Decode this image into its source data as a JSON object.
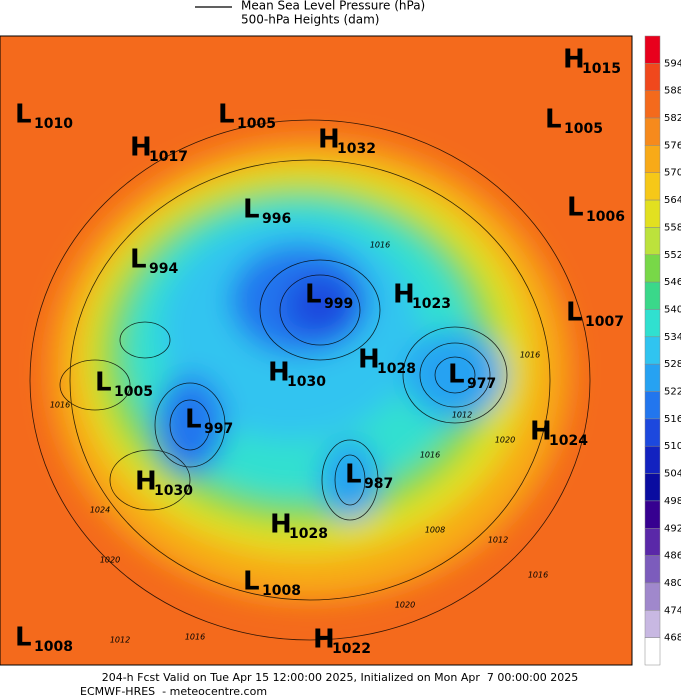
{
  "header": {
    "legend": [
      "Mean Sea Level Pressure (hPa)",
      "500-hPa Heights (dam)"
    ]
  },
  "colorbar": {
    "ticks": [
      594,
      588,
      582,
      576,
      570,
      564,
      558,
      552,
      546,
      540,
      534,
      528,
      522,
      516,
      510,
      504,
      498,
      492,
      486,
      480,
      474,
      468
    ],
    "colors": [
      "#e8001c",
      "#f0481c",
      "#f46a1c",
      "#f68a1c",
      "#f8aa18",
      "#f6c818",
      "#e2e020",
      "#bce23c",
      "#78d848",
      "#3ad88a",
      "#30e0d0",
      "#30c4f0",
      "#26a2f2",
      "#2276ee",
      "#1c48de",
      "#1222c0",
      "#0a0ca0",
      "#360090",
      "#5a28a8",
      "#7c5cbc",
      "#a088cc",
      "#c8b8e2",
      "#ffffff"
    ]
  },
  "centers": [
    {
      "letter": "L",
      "value": "1010"
    },
    {
      "letter": "H",
      "value": "1017"
    },
    {
      "letter": "L",
      "value": "1005"
    },
    {
      "letter": "H",
      "value": "1032"
    },
    {
      "letter": "H",
      "value": "1015"
    },
    {
      "letter": "L",
      "value": "1005"
    },
    {
      "letter": "L",
      "value": "996"
    },
    {
      "letter": "L",
      "value": "1006"
    },
    {
      "letter": "L",
      "value": "994"
    },
    {
      "letter": "L",
      "value": "999"
    },
    {
      "letter": "H",
      "value": "1023"
    },
    {
      "letter": "L",
      "value": "1007"
    },
    {
      "letter": "L",
      "value": "1005"
    },
    {
      "letter": "H",
      "value": "1030"
    },
    {
      "letter": "H",
      "value": "1028"
    },
    {
      "letter": "L",
      "value": "977"
    },
    {
      "letter": "L",
      "value": "997"
    },
    {
      "letter": "H",
      "value": "1024"
    },
    {
      "letter": "H",
      "value": "1030"
    },
    {
      "letter": "L",
      "value": "987"
    },
    {
      "letter": "H",
      "value": "1028"
    },
    {
      "letter": "L",
      "value": "1008"
    },
    {
      "letter": "L",
      "value": "1008"
    },
    {
      "letter": "H",
      "value": "1022"
    }
  ],
  "contour_labels": [
    "1016",
    "1016",
    "1024",
    "1020",
    "1012",
    "1016",
    "1020",
    "1016",
    "1008",
    "1012",
    "1012",
    "1016",
    "1020",
    "1016"
  ],
  "footer": [
    "204-h Fcst Valid on Tue Apr 15 12:00:00 2025, Initialized on Mon Apr  7 00:00:00 2025",
    "ECMWF-HRES  - meteocentre.com"
  ]
}
